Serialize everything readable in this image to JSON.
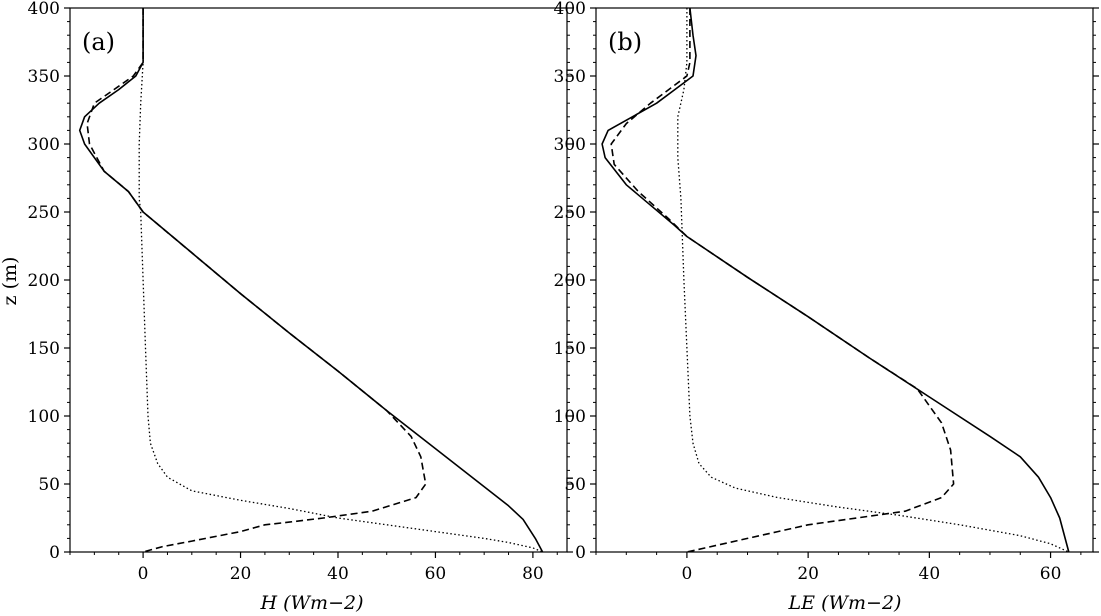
{
  "figure": {
    "ylabel": "z (m)",
    "xlabels": [
      "H  (Wm−2)",
      "LE  (Wm−2)"
    ]
  },
  "chart_data": [
    {
      "type": "line",
      "panel_label": "(a)",
      "xlabel": "H (Wm^-2)",
      "ylabel": "z (m)",
      "xlim": [
        -15,
        87
      ],
      "ylim": [
        0,
        400
      ],
      "xticks": [
        0,
        20,
        40,
        60,
        80
      ],
      "yticks": [
        0,
        50,
        100,
        150,
        200,
        250,
        300,
        350,
        400
      ],
      "grid": false,
      "series": [
        {
          "style": "solid",
          "x": [
            0,
            0,
            0,
            -1.5,
            -5,
            -9,
            -12,
            -13,
            -12,
            -8,
            -3,
            0,
            10,
            20,
            30,
            40,
            50,
            60,
            70,
            75,
            78,
            80.5,
            82
          ],
          "y": [
            400,
            370,
            360,
            350,
            340,
            330,
            320,
            310,
            300,
            280,
            265,
            250,
            220,
            190,
            161,
            133,
            104,
            76,
            48,
            34,
            24,
            10,
            0
          ]
        },
        {
          "style": "dashed",
          "x": [
            0,
            0,
            0,
            -2,
            -6,
            -10,
            -11.5,
            -11,
            -8,
            -3,
            0,
            10,
            20,
            30,
            40,
            50,
            55,
            57,
            58,
            56,
            47,
            37,
            30,
            25,
            20,
            10,
            4,
            0
          ],
          "y": [
            400,
            370,
            360,
            350,
            340,
            330,
            315,
            300,
            280,
            265,
            250,
            220,
            190,
            161,
            133,
            104,
            85,
            70,
            50,
            40,
            30,
            25,
            22,
            20,
            15,
            8,
            4,
            0
          ]
        },
        {
          "style": "dotted",
          "x": [
            0,
            0,
            -0.5,
            -0.8,
            -0.8,
            -0.5,
            0,
            0.5,
            1,
            1.5,
            3,
            5,
            10,
            20,
            30,
            40,
            50,
            60,
            70,
            75,
            80,
            82
          ],
          "y": [
            400,
            360,
            330,
            300,
            260,
            250,
            200,
            150,
            100,
            80,
            65,
            55,
            45,
            38,
            32,
            25,
            20,
            15,
            10,
            7,
            3,
            0
          ]
        }
      ]
    },
    {
      "type": "line",
      "panel_label": "(b)",
      "xlabel": "LE (Wm^-2)",
      "ylabel": "z (m)",
      "xlim": [
        -15,
        67
      ],
      "ylim": [
        0,
        400
      ],
      "xticks": [
        0,
        20,
        40,
        60
      ],
      "yticks": [
        0,
        50,
        100,
        150,
        200,
        250,
        300,
        350,
        400
      ],
      "grid": false,
      "series": [
        {
          "style": "solid",
          "x": [
            0.5,
            1,
            1.5,
            1,
            -2,
            -5,
            -9,
            -13,
            -14,
            -13.5,
            -10,
            -6,
            -2,
            0,
            10,
            20,
            30,
            40,
            50,
            55,
            58,
            60,
            61.5,
            63
          ],
          "y": [
            400,
            380,
            365,
            350,
            340,
            330,
            320,
            310,
            300,
            290,
            270,
            255,
            240,
            232,
            202,
            173,
            143,
            114,
            85,
            70,
            55,
            40,
            25,
            0
          ]
        },
        {
          "style": "dashed",
          "x": [
            0.5,
            0.5,
            0.5,
            0,
            -3,
            -6,
            -10,
            -12.5,
            -12,
            -8,
            -3,
            0,
            10,
            20,
            30,
            38,
            42,
            43.5,
            44,
            42,
            36,
            28,
            20,
            15,
            10,
            5,
            2,
            0
          ],
          "y": [
            400,
            380,
            360,
            350,
            340,
            330,
            315,
            300,
            285,
            265,
            245,
            232,
            202,
            173,
            143,
            120,
            95,
            75,
            50,
            40,
            30,
            25,
            20,
            15,
            10,
            5,
            2,
            0
          ]
        },
        {
          "style": "dotted",
          "x": [
            0,
            0,
            -0.5,
            -1.5,
            -1.5,
            -1,
            -0.5,
            0,
            0.5,
            1,
            2,
            4,
            8,
            15,
            25,
            35,
            45,
            55,
            60,
            63
          ],
          "y": [
            400,
            360,
            340,
            320,
            290,
            260,
            200,
            150,
            100,
            80,
            65,
            55,
            47,
            40,
            33,
            27,
            20,
            12,
            6,
            0
          ]
        }
      ]
    }
  ]
}
